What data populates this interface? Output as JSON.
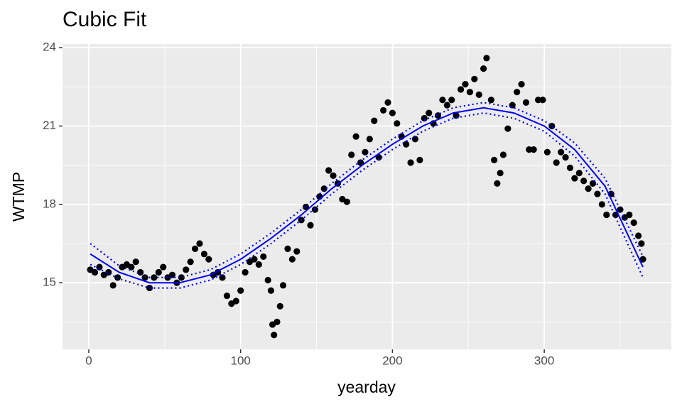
{
  "chart_data": {
    "type": "scatter",
    "title": "Cubic Fit",
    "x_label": "yearday",
    "y_label": "WTMP",
    "xlim": [
      -17.3,
      383.7
    ],
    "ylim": [
      12.45,
      24.14
    ],
    "xticks": [
      0,
      100,
      200,
      300
    ],
    "yticks": [
      15,
      18,
      21,
      24
    ],
    "grid": true,
    "color": "#000000",
    "x": [
      1,
      4,
      7,
      10,
      13,
      16,
      19,
      22,
      25,
      28,
      31,
      34,
      37,
      40,
      43,
      46,
      49,
      52,
      55,
      58,
      61,
      64,
      67,
      70,
      73,
      76,
      79,
      82,
      85,
      88,
      91,
      94,
      97,
      100,
      103,
      106,
      109,
      112,
      115,
      118,
      120,
      121,
      122,
      124,
      126,
      128,
      131,
      134,
      137,
      140,
      143,
      146,
      149,
      152,
      155,
      158,
      161,
      164,
      167,
      170,
      173,
      176,
      179,
      182,
      185,
      188,
      191,
      194,
      197,
      200,
      203,
      206,
      209,
      212,
      215,
      218,
      221,
      224,
      227,
      230,
      233,
      236,
      239,
      242,
      245,
      248,
      251,
      254,
      257,
      260,
      262,
      265,
      267,
      269,
      271,
      273,
      276,
      279,
      282,
      285,
      288,
      290,
      293,
      296,
      299,
      302,
      305,
      308,
      311,
      314,
      317,
      320,
      323,
      326,
      329,
      332,
      335,
      338,
      341,
      344,
      347,
      350,
      353,
      356,
      359,
      362,
      364,
      365
    ],
    "values": [
      15.5,
      15.4,
      15.6,
      15.3,
      15.4,
      14.9,
      15.2,
      15.6,
      15.7,
      15.6,
      15.8,
      15.4,
      15.2,
      14.8,
      15.2,
      15.4,
      15.6,
      15.2,
      15.3,
      15.0,
      15.2,
      15.5,
      15.8,
      16.3,
      16.5,
      16.1,
      15.9,
      15.3,
      15.4,
      15.2,
      14.5,
      14.2,
      14.3,
      14.7,
      15.4,
      15.8,
      15.9,
      15.7,
      16.0,
      15.1,
      14.7,
      13.4,
      13.0,
      13.5,
      14.1,
      14.9,
      16.3,
      15.9,
      16.2,
      17.4,
      17.9,
      17.2,
      17.8,
      18.3,
      18.6,
      19.3,
      19.1,
      18.8,
      18.2,
      18.1,
      19.9,
      20.6,
      19.6,
      20.0,
      20.5,
      21.2,
      19.8,
      21.6,
      21.9,
      21.5,
      21.1,
      20.6,
      20.3,
      19.6,
      20.5,
      19.7,
      21.3,
      21.5,
      21.1,
      21.4,
      22.0,
      21.8,
      22.0,
      21.4,
      22.4,
      22.6,
      22.3,
      22.8,
      22.2,
      23.2,
      23.6,
      22.0,
      19.7,
      18.8,
      19.2,
      19.9,
      20.9,
      21.8,
      22.3,
      22.6,
      21.9,
      20.1,
      20.1,
      22.0,
      22.0,
      20.0,
      21.0,
      19.6,
      20.0,
      19.8,
      19.4,
      19.0,
      19.2,
      18.9,
      18.6,
      18.8,
      18.4,
      18.0,
      17.6,
      18.4,
      17.6,
      17.8,
      17.5,
      17.6,
      17.3,
      16.8,
      16.5,
      15.9
    ],
    "fit": {
      "color": "#0000ff",
      "x": [
        1,
        20,
        40,
        60,
        80,
        100,
        120,
        140,
        160,
        180,
        200,
        220,
        240,
        260,
        280,
        300,
        320,
        340,
        365
      ],
      "values": [
        16.1,
        15.4,
        15.0,
        15.0,
        15.3,
        15.9,
        16.7,
        17.6,
        18.6,
        19.5,
        20.3,
        21.0,
        21.5,
        21.7,
        21.5,
        21.0,
        20.1,
        18.7,
        15.6
      ],
      "upper": [
        16.5,
        15.65,
        15.2,
        15.2,
        15.5,
        16.1,
        16.9,
        17.8,
        18.8,
        19.7,
        20.5,
        21.2,
        21.7,
        21.9,
        21.7,
        21.2,
        20.35,
        19.0,
        16.0
      ],
      "lower": [
        15.7,
        15.15,
        14.8,
        14.8,
        15.1,
        15.7,
        16.5,
        17.4,
        18.4,
        19.3,
        20.1,
        20.8,
        21.3,
        21.5,
        21.3,
        20.8,
        19.85,
        18.4,
        15.2
      ]
    }
  }
}
